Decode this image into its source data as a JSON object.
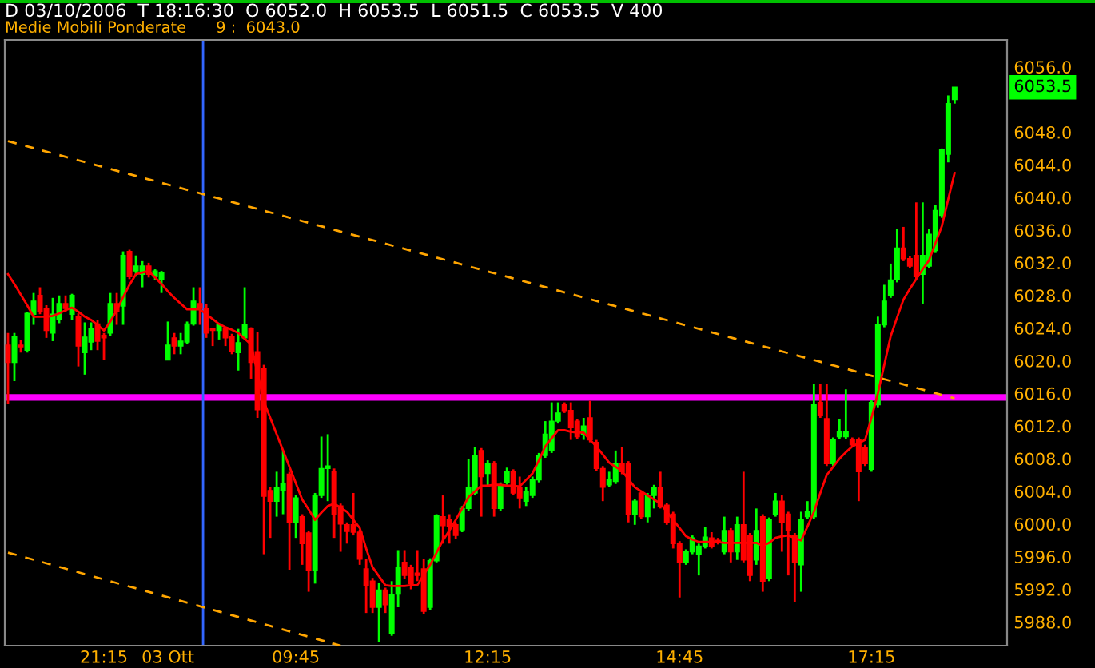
{
  "chart_data": {
    "type": "candlestick",
    "title": "D 03/10/2006  T 18:16:30  O 6052.0  H 6053.5  L 6051.5  C 6053.5  V 400",
    "subtitle": "Medie Mobili Ponderate      9 :  6043.0",
    "categories": [
      null,
      null,
      null,
      null,
      null,
      null,
      null,
      null,
      null,
      null,
      null,
      null,
      null,
      null,
      null,
      "21:15",
      null,
      null,
      null,
      null,
      null,
      null,
      null,
      null,
      null,
      "03 Ott",
      null,
      null,
      null,
      null,
      null,
      null,
      null,
      null,
      null,
      null,
      null,
      null,
      null,
      null,
      null,
      null,
      null,
      null,
      null,
      "09:45",
      null,
      null,
      null,
      null,
      null,
      null,
      null,
      null,
      null,
      null,
      null,
      null,
      null,
      null,
      null,
      null,
      null,
      null,
      null,
      null,
      null,
      null,
      null,
      null,
      null,
      null,
      null,
      null,
      null,
      "12:15",
      null,
      null,
      null,
      null,
      null,
      null,
      null,
      null,
      null,
      null,
      null,
      null,
      null,
      null,
      null,
      null,
      null,
      null,
      null,
      null,
      null,
      null,
      null,
      null,
      null,
      null,
      null,
      null,
      null,
      "14:45",
      null,
      null,
      null,
      null,
      null,
      null,
      null,
      null,
      null,
      null,
      null,
      null,
      null,
      null,
      null,
      null,
      null,
      null,
      null,
      null,
      null,
      null,
      null,
      null,
      null,
      null,
      null,
      null,
      null,
      "17:15",
      null,
      null,
      null,
      null,
      null,
      null,
      null,
      null,
      null,
      null,
      null,
      null,
      null
    ],
    "colors": [
      "#ff0000",
      "#00ff00",
      "#ff0000",
      "#00ff00",
      "#00ff00",
      "#ff0000",
      "#ff0000",
      "#00ff00",
      "#00ff00",
      "#ff0000",
      "#00ff00",
      "#ff0000",
      "#00ff00",
      "#00ff00",
      "#ff0000",
      "#ff0000",
      "#00ff00",
      "#ff0000",
      "#00ff00",
      "#ff0000",
      "#00ff00",
      "#00ff00",
      "#ff0000",
      "#00ff00",
      "#00ff00",
      "#00ff00",
      "#ff0000",
      "#00ff00",
      "#00ff00",
      "#00ff00",
      "#ff0000",
      "#ff0000",
      "#ff0000",
      "#00ff00",
      "#ff0000",
      "#ff0000",
      "#00ff00",
      "#00ff00",
      "#ff0000",
      "#ff0000",
      "#ff0000",
      "#ff0000",
      "#00ff00",
      "#00ff00",
      "#ff0000",
      "#00ff00",
      "#ff0000",
      "#ff0000",
      "#00ff00",
      "#00ff00",
      "#00ff00",
      "#ff0000",
      "#ff0000",
      "#ff0000",
      "#ff0000",
      "#ff0000",
      "#ff0000",
      "#ff0000",
      "#00ff00",
      "#ff0000",
      "#00ff00",
      "#00ff00",
      "#ff0000",
      "#ff0000",
      "#ff0000",
      "#ff0000",
      "#00ff00",
      "#00ff00",
      "#ff0000",
      "#ff0000",
      "#ff0000",
      "#00ff00",
      "#00ff00",
      "#00ff00",
      "#ff0000",
      "#00ff00",
      "#ff0000",
      "#00ff00",
      "#00ff00",
      "#ff0000",
      "#ff0000",
      "#00ff00",
      "#00ff00",
      "#00ff00",
      "#00ff00",
      "#00ff00",
      "#00ff00",
      "#ff0000",
      "#ff0000",
      "#ff0000",
      "#00ff00",
      "#ff0000",
      "#ff0000",
      "#ff0000",
      "#00ff00",
      "#00ff00",
      "#ff0000",
      "#ff0000",
      "#00ff00",
      "#ff0000",
      "#00ff00",
      "#00ff00",
      "#ff0000",
      "#ff0000",
      "#ff0000",
      "#ff0000",
      "#00ff00",
      "#00ff00",
      "#00ff00",
      "#00ff00",
      "#ff0000",
      "#ff0000",
      "#00ff00",
      "#ff0000",
      "#00ff00",
      "#ff0000",
      "#ff0000",
      "#00ff00",
      "#ff0000",
      "#00ff00",
      "#00ff00",
      "#ff0000",
      "#ff0000",
      "#ff0000",
      "#00ff00",
      "#00ff00",
      "#00ff00",
      "#ff0000",
      "#ff0000",
      "#00ff00",
      "#00ff00",
      "#00ff00",
      "#ff0000",
      "#ff0000",
      "#ff0000",
      "#00ff00",
      "#00ff00",
      "#00ff00",
      "#00ff00",
      "#00ff00",
      "#ff0000",
      "#ff0000",
      "#ff0000",
      "#00ff00",
      "#00ff00",
      "#00ff00",
      "#00ff00",
      "#00ff00",
      "#00ff00"
    ],
    "ohlc": [
      [
        6021.9,
        6023.4,
        6014.7,
        6019.8
      ],
      [
        6019.8,
        6023.4,
        6017.5,
        6023.0
      ],
      [
        6021.9,
        6022.5,
        6021.0,
        6021.7
      ],
      [
        6021.3,
        6026.0,
        6021.0,
        6025.8
      ],
      [
        6025.7,
        6028.3,
        6024.4,
        6027.3
      ],
      [
        6028.0,
        6029.0,
        6025.7,
        6026.0
      ],
      [
        6026.4,
        6026.8,
        6022.8,
        6023.7
      ],
      [
        6023.4,
        6027.7,
        6022.4,
        6025.7
      ],
      [
        6025.0,
        6028.0,
        6024.6,
        6027.0
      ],
      [
        6027.0,
        6028.0,
        6026.0,
        6026.4
      ],
      [
        6025.7,
        6028.2,
        6025.0,
        6028.0
      ],
      [
        6025.4,
        6025.8,
        6019.3,
        6021.8
      ],
      [
        6021.0,
        6024.7,
        6018.3,
        6022.9
      ],
      [
        6022.3,
        6024.7,
        6021.3,
        6023.9
      ],
      [
        6024.5,
        6025.0,
        6021.3,
        6022.4
      ],
      [
        6023.1,
        6023.4,
        6020.1,
        6022.8
      ],
      [
        6023.4,
        6028.3,
        6023.0,
        6027.0
      ],
      [
        6027.0,
        6028.3,
        6024.4,
        6026.0
      ],
      [
        6026.7,
        6033.4,
        6024.4,
        6032.9
      ],
      [
        6033.4,
        6033.6,
        6030.0,
        6030.3
      ],
      [
        6031.0,
        6032.9,
        6030.3,
        6031.6
      ],
      [
        6030.6,
        6032.2,
        6029.0,
        6031.6
      ],
      [
        6031.6,
        6032.0,
        6030.2,
        6030.6
      ],
      [
        6030.3,
        6031.2,
        6029.9,
        6031.0
      ],
      [
        6030.0,
        6031.0,
        6028.3,
        6030.8
      ],
      [
        6020.1,
        6024.8,
        6020.1,
        6021.9
      ],
      [
        6022.8,
        6023.4,
        6020.8,
        6021.8
      ],
      [
        6021.8,
        6023.4,
        6020.8,
        6022.4
      ],
      [
        6022.3,
        6024.8,
        6022.0,
        6024.5
      ],
      [
        6024.5,
        6029.0,
        6024.3,
        6027.3
      ],
      [
        6027.0,
        6029.0,
        6024.4,
        6026.4
      ],
      [
        6026.4,
        6027.0,
        6022.8,
        6023.4
      ],
      [
        6023.9,
        6024.0,
        6021.8,
        6023.7
      ],
      [
        6023.7,
        6024.6,
        6022.6,
        6024.4
      ],
      [
        6023.9,
        6024.1,
        6021.8,
        6022.8
      ],
      [
        6023.0,
        6023.3,
        6020.8,
        6021.1
      ],
      [
        6021.0,
        6023.9,
        6018.8,
        6022.2
      ],
      [
        6022.8,
        6029.0,
        6022.6,
        6024.4
      ],
      [
        6023.9,
        6024.1,
        6017.8,
        6019.8
      ],
      [
        6021.1,
        6023.5,
        6013.0,
        6014.0
      ],
      [
        6019.0,
        6019.5,
        5996.3,
        6003.4
      ],
      [
        6004.1,
        6004.5,
        5998.3,
        6002.8
      ],
      [
        6002.8,
        6006.4,
        6000.9,
        6004.5
      ],
      [
        6004.1,
        6009.0,
        6001.2,
        6004.9
      ],
      [
        6006.1,
        6006.4,
        5994.4,
        6000.2
      ],
      [
        6000.2,
        6003.5,
        5998.3,
        6003.2
      ],
      [
        6000.9,
        6001.2,
        5995.0,
        5997.6
      ],
      [
        5998.9,
        5999.2,
        5991.7,
        5994.3
      ],
      [
        5994.3,
        6003.8,
        5992.7,
        6003.5
      ],
      [
        6003.5,
        6010.7,
        6003.2,
        6006.8
      ],
      [
        6006.8,
        6011.0,
        6002.8,
        6007.1
      ],
      [
        6006.4,
        6006.8,
        5998.3,
        6001.2
      ],
      [
        6002.2,
        6002.5,
        5996.6,
        6000.0
      ],
      [
        5999.9,
        6000.2,
        5997.6,
        5999.1
      ],
      [
        5999.9,
        6003.8,
        5998.6,
        5999.0
      ],
      [
        5999.0,
        5999.3,
        5995.0,
        5995.7
      ],
      [
        5994.5,
        5995.7,
        5989.1,
        5992.4
      ],
      [
        5993.0,
        5993.4,
        5989.1,
        5989.8
      ],
      [
        5989.8,
        5992.8,
        5985.5,
        5991.9
      ],
      [
        5991.9,
        5992.2,
        5989.1,
        5990.1
      ],
      [
        5986.6,
        5993.0,
        5986.3,
        5991.4
      ],
      [
        5991.4,
        5996.8,
        5989.8,
        5994.7
      ],
      [
        5995.3,
        5996.8,
        5993.3,
        5993.7
      ],
      [
        5994.7,
        5995.0,
        5992.0,
        5992.7
      ],
      [
        5994.0,
        5996.8,
        5993.0,
        5993.7
      ],
      [
        5994.5,
        5995.7,
        5989.0,
        5989.3
      ],
      [
        5989.8,
        5995.8,
        5989.5,
        5995.5
      ],
      [
        5995.5,
        6001.2,
        5995.3,
        6001.0
      ],
      [
        6000.9,
        6003.5,
        5997.6,
        5999.8
      ],
      [
        6000.5,
        6001.2,
        5997.6,
        5999.7
      ],
      [
        5999.9,
        6000.2,
        5998.2,
        5998.6
      ],
      [
        5999.3,
        6002.2,
        5999.0,
        6001.9
      ],
      [
        6001.9,
        6008.0,
        6001.6,
        6004.5
      ],
      [
        6003.8,
        6009.4,
        6003.5,
        6008.4
      ],
      [
        6009.0,
        6009.3,
        6000.9,
        6005.8
      ],
      [
        6006.2,
        6007.8,
        6004.5,
        6007.4
      ],
      [
        6007.4,
        6007.7,
        6000.9,
        6001.9
      ],
      [
        6001.9,
        6005.1,
        6001.6,
        6004.8
      ],
      [
        6005.1,
        6006.9,
        6004.8,
        6006.4
      ],
      [
        6006.4,
        6006.7,
        6003.5,
        6003.8
      ],
      [
        6004.5,
        6005.8,
        6001.9,
        6003.2
      ],
      [
        6002.8,
        6004.5,
        6002.2,
        6004.0
      ],
      [
        6003.5,
        6005.8,
        6003.2,
        6005.4
      ],
      [
        6005.4,
        6008.7,
        6005.1,
        6008.4
      ],
      [
        6008.4,
        6012.6,
        6008.1,
        6011.0
      ],
      [
        6009.0,
        6014.9,
        6008.7,
        6012.6
      ],
      [
        6012.6,
        6014.9,
        6012.3,
        6013.6
      ],
      [
        6014.7,
        6014.9,
        6013.6,
        6013.9
      ],
      [
        6013.9,
        6014.9,
        6010.3,
        6011.8
      ],
      [
        6012.6,
        6012.9,
        6010.4,
        6010.7
      ],
      [
        6011.0,
        6013.0,
        6010.3,
        6012.0
      ],
      [
        6013.0,
        6015.1,
        6010.0,
        6010.3
      ],
      [
        6010.0,
        6010.3,
        6006.5,
        6006.8
      ],
      [
        6006.8,
        6007.1,
        6002.8,
        6004.5
      ],
      [
        6004.8,
        6006.4,
        6004.5,
        6005.4
      ],
      [
        6005.2,
        6009.0,
        6004.9,
        6007.4
      ],
      [
        6007.4,
        6009.4,
        6006.1,
        6006.4
      ],
      [
        6007.4,
        6007.7,
        6000.2,
        6001.2
      ],
      [
        6001.2,
        6003.1,
        5999.9,
        6002.8
      ],
      [
        6003.8,
        6004.1,
        6000.6,
        6000.9
      ],
      [
        6000.9,
        6003.8,
        6000.2,
        6003.5
      ],
      [
        6003.5,
        6004.8,
        6001.9,
        6004.5
      ],
      [
        6004.5,
        6006.4,
        6001.9,
        6002.2
      ],
      [
        6002.3,
        6002.6,
        5999.9,
        6000.2
      ],
      [
        6001.2,
        6001.5,
        5997.0,
        5997.6
      ],
      [
        5997.6,
        5997.9,
        5991.0,
        5995.3
      ],
      [
        5995.3,
        5996.9,
        5995.0,
        5996.6
      ],
      [
        5996.6,
        5998.6,
        5996.3,
        5998.3
      ],
      [
        5996.3,
        5997.6,
        5993.7,
        5997.3
      ],
      [
        5997.3,
        5999.6,
        5997.0,
        5998.4
      ],
      [
        5998.3,
        5999.0,
        5997.0,
        5997.3
      ],
      [
        5998.0,
        5998.3,
        5997.5,
        5997.8
      ],
      [
        5996.6,
        6000.9,
        5996.3,
        5999.2
      ],
      [
        5999.2,
        5999.5,
        5995.3,
        5996.6
      ],
      [
        5996.6,
        6000.9,
        5995.6,
        5999.9
      ],
      [
        5999.9,
        6006.4,
        5995.3,
        5995.6
      ],
      [
        5998.6,
        5998.9,
        5993.0,
        5993.7
      ],
      [
        5995.6,
        6001.9,
        5995.0,
        5999.2
      ],
      [
        6000.9,
        6001.2,
        5991.7,
        5993.0
      ],
      [
        5993.3,
        6000.8,
        5993.0,
        6000.5
      ],
      [
        6001.2,
        6003.8,
        6000.9,
        6002.8
      ],
      [
        6002.8,
        6003.5,
        5996.6,
        6000.2
      ],
      [
        6001.2,
        6001.5,
        5993.7,
        5999.2
      ],
      [
        5998.6,
        5998.9,
        5990.4,
        5995.3
      ],
      [
        5995.0,
        6001.5,
        5991.7,
        6000.5
      ],
      [
        6000.9,
        6002.8,
        6000.6,
        6001.5
      ],
      [
        6000.9,
        6017.2,
        6000.6,
        6014.6
      ],
      [
        6014.9,
        6017.2,
        6013.0,
        6013.3
      ],
      [
        6012.9,
        6017.2,
        6007.1,
        6007.4
      ],
      [
        6007.4,
        6010.6,
        6007.1,
        6010.3
      ],
      [
        6010.7,
        6012.9,
        6010.4,
        6011.3
      ],
      [
        6010.7,
        6016.5,
        6010.4,
        6011.3
      ],
      [
        6010.3,
        6010.6,
        6009.4,
        6009.7
      ],
      [
        6010.3,
        6010.6,
        6002.8,
        6006.4
      ],
      [
        6009.4,
        6009.7,
        6007.1,
        6007.4
      ],
      [
        6006.7,
        6015.2,
        6006.4,
        6014.9
      ],
      [
        6014.6,
        6025.4,
        6014.3,
        6024.4
      ],
      [
        6024.4,
        6029.3,
        6024.1,
        6027.3
      ],
      [
        6028.0,
        6031.9,
        6027.7,
        6029.9
      ],
      [
        6029.9,
        6036.1,
        6029.6,
        6033.8
      ],
      [
        6033.8,
        6036.4,
        6032.2,
        6032.5
      ],
      [
        6032.5,
        6032.8,
        6031.3,
        6031.6
      ],
      [
        6032.9,
        6039.4,
        6030.0,
        6030.3
      ],
      [
        6030.6,
        6039.4,
        6027.0,
        6032.9
      ],
      [
        6031.6,
        6036.1,
        6031.3,
        6035.5
      ],
      [
        6033.5,
        6039.1,
        6033.2,
        6038.4
      ],
      [
        6037.8,
        6046.0,
        6037.5,
        6045.9
      ],
      [
        6045.3,
        6052.5,
        6044.3,
        6051.5
      ],
      [
        6052.0,
        6053.5,
        6051.5,
        6053.5
      ]
    ],
    "series": [
      {
        "type": "line",
        "color": "#ff0000",
        "values": [
          6030.6,
          6029.4,
          6028.1,
          6026.8,
          6025.4,
          6025.4,
          6025.4,
          6025.5,
          6025.8,
          6026.2,
          6026.5,
          6026.0,
          6025.4,
          6025.0,
          6024.4,
          6023.7,
          6024.8,
          6026.2,
          6027.8,
          6029.3,
          6030.6,
          6030.8,
          6031.0,
          6030.2,
          6029.4,
          6028.5,
          6027.7,
          6027.0,
          6026.3,
          6026.3,
          6026.3,
          6025.7,
          6025.1,
          6024.5,
          6024.1,
          6023.8,
          6023.4,
          6022.7,
          6022.0,
          6018.5,
          6015.0,
          6013.0,
          6011.0,
          6009.0,
          6007.0,
          6005.0,
          6003.0,
          6001.8,
          6000.5,
          6001.4,
          6002.2,
          6002.5,
          6002.0,
          6001.5,
          6000.5,
          5999.5,
          5997.0,
          5994.7,
          5993.6,
          5992.5,
          5992.4,
          5992.4,
          5992.4,
          5992.5,
          5992.5,
          5993.8,
          5995.0,
          5996.5,
          5998.0,
          5999.2,
          6000.5,
          6001.9,
          6003.3,
          6004.0,
          6004.7,
          6004.7,
          6004.8,
          6004.8,
          6004.7,
          6004.7,
          6004.6,
          6005.4,
          6006.2,
          6007.8,
          6009.5,
          6010.5,
          6011.5,
          6011.5,
          6011.3,
          6011.2,
          6011.2,
          6010.3,
          6009.5,
          6008.5,
          6007.5,
          6007.0,
          6006.5,
          6005.5,
          6004.5,
          6004.0,
          6003.5,
          6003.0,
          6002.5,
          6001.5,
          6000.5,
          5999.5,
          5998.5,
          5998.1,
          5997.8,
          5997.8,
          5997.8,
          5997.8,
          5997.7,
          5997.7,
          5997.7,
          5997.7,
          5997.7,
          5997.7,
          5997.3,
          5997.7,
          5998.3,
          5998.5,
          5998.6,
          5998.3,
          5998.0,
          5999.7,
          6001.5,
          6003.8,
          6006.0,
          6007.0,
          6008.0,
          6008.8,
          6009.5,
          6009.9,
          6010.3,
          6013.0,
          6016.0,
          6019.5,
          6023.0,
          6025.3,
          6027.5,
          6028.8,
          6030.0,
          6031.2,
          6032.3,
          6034.4,
          6036.5,
          6039.8,
          6043.0
        ]
      },
      {
        "type": "line",
        "color": "#ffa500",
        "line_style": "dashed",
        "values": [
          6046.9,
          null,
          null,
          null,
          null,
          null,
          null,
          null,
          null,
          null,
          null,
          null,
          null,
          null,
          null,
          null,
          null,
          null,
          null,
          null,
          null,
          null,
          null,
          null,
          null,
          null,
          null,
          null,
          null,
          null,
          null,
          null,
          null,
          null,
          null,
          null,
          null,
          null,
          null,
          null,
          null,
          null,
          null,
          null,
          null,
          null,
          null,
          null,
          null,
          null,
          null,
          null,
          null,
          null,
          null,
          null,
          null,
          null,
          null,
          null,
          null,
          null,
          null,
          null,
          null,
          null,
          null,
          null,
          null,
          null,
          null,
          null,
          null,
          null,
          null,
          null,
          null,
          null,
          null,
          null,
          null,
          null,
          null,
          null,
          null,
          null,
          null,
          null,
          null,
          null,
          null,
          null,
          null,
          null,
          null,
          null,
          null,
          null,
          null,
          null,
          null,
          null,
          null,
          null,
          null,
          null,
          null,
          null,
          null,
          null,
          null,
          null,
          null,
          null,
          null,
          null,
          null,
          null,
          null,
          null,
          null,
          null,
          null,
          null,
          null,
          null,
          null,
          null,
          null,
          null,
          null,
          null,
          null,
          null,
          null,
          null,
          null,
          null,
          null,
          null,
          null,
          null,
          null,
          null,
          null,
          null,
          null,
          null,
          6015.4
        ]
      },
      {
        "type": "line",
        "color": "#ffa500",
        "line_style": "dashed",
        "values": [
          5996.5,
          null,
          null,
          null,
          null,
          null,
          null,
          null,
          null,
          null,
          null,
          null,
          null,
          null,
          null,
          null,
          null,
          null,
          null,
          null,
          null,
          null,
          null,
          null,
          null,
          null,
          null,
          null,
          null,
          null,
          null,
          null,
          null,
          null,
          null,
          null,
          null,
          null,
          null,
          null,
          null,
          null,
          null,
          null,
          null,
          null,
          null,
          null,
          null,
          null,
          null,
          null,
          5985.1,
          null,
          null,
          null,
          null,
          null,
          null,
          null,
          null,
          null,
          null,
          null,
          null,
          null,
          null,
          null,
          null,
          null,
          null,
          null,
          null,
          null,
          null,
          null,
          null,
          null,
          null,
          null,
          null,
          null,
          null,
          null,
          null,
          null,
          null,
          null,
          null,
          null,
          null,
          null,
          null,
          null,
          null,
          null,
          null,
          null,
          null,
          null,
          null,
          null,
          null,
          null,
          null,
          null,
          null,
          null,
          null,
          null,
          null,
          null,
          null,
          null,
          null,
          null,
          null,
          null,
          null,
          null,
          null,
          null,
          null,
          null,
          null,
          null,
          null,
          null,
          null,
          null,
          null,
          null,
          null,
          null,
          null,
          null,
          null,
          null,
          null,
          null,
          null,
          null,
          null,
          null,
          null,
          null,
          null,
          null,
          null
        ]
      }
    ],
    "ref_lines": [
      {
        "axis": "y",
        "value": 6015.5,
        "color": "#ff00ff"
      }
    ],
    "annotations": [
      "6053.5"
    ],
    "ylim": [
      5985.1,
      6059.3
    ],
    "yticks": [
      {
        "value": 5988,
        "label": "5988.0"
      },
      {
        "value": 5992,
        "label": "5992.0"
      },
      {
        "value": 5996,
        "label": "5996.0"
      },
      {
        "value": 6000,
        "label": "6000.0"
      },
      {
        "value": 6004,
        "label": "6004.0"
      },
      {
        "value": 6008,
        "label": "6008.0"
      },
      {
        "value": 6012,
        "label": "6012.0"
      },
      {
        "value": 6016,
        "label": "6016.0"
      },
      {
        "value": 6020,
        "label": "6020.0"
      },
      {
        "value": 6024,
        "label": "6024.0"
      },
      {
        "value": 6028,
        "label": "6028.0"
      },
      {
        "value": 6032,
        "label": "6032.0"
      },
      {
        "value": 6036,
        "label": "6036.0"
      },
      {
        "value": 6040,
        "label": "6040.0"
      },
      {
        "value": 6044,
        "label": "6044.0"
      },
      {
        "value": 6048,
        "label": "6048.0"
      },
      {
        "value": 6056,
        "label": "6056.0"
      }
    ],
    "grid": false
  }
}
